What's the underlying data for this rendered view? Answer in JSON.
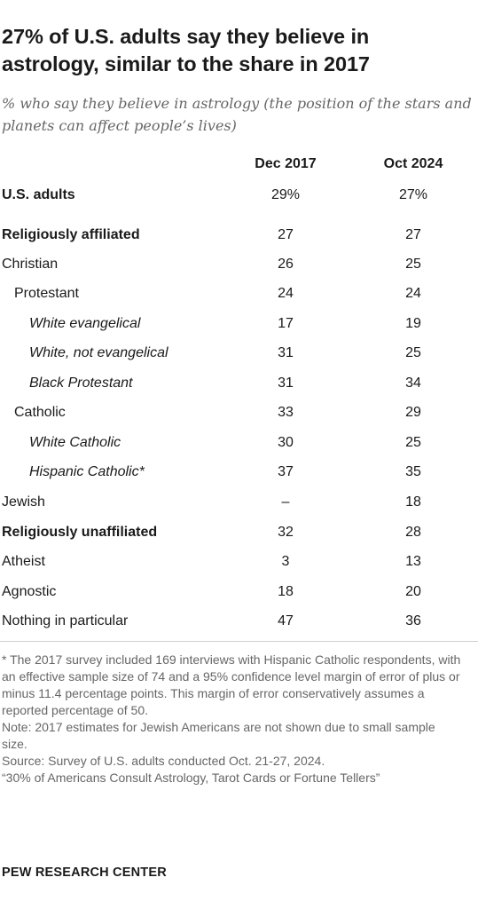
{
  "chart_data": {
    "type": "table",
    "title": "27% of U.S. adults say they believe in astrology, similar to the share in 2017",
    "subtitle": "% who say they believe in astrology (the position of the stars and planets can affect people’s lives)",
    "columns": [
      "Dec 2017",
      "Oct 2024"
    ],
    "rows": [
      {
        "label": "U.S. adults",
        "dec2017": "29%",
        "oct2024": "27%",
        "style": "bold",
        "indent": 0
      },
      {
        "label": "Religiously affiliated",
        "dec2017": "27",
        "oct2024": "27",
        "style": "bold",
        "indent": 0
      },
      {
        "label": "Christian",
        "dec2017": "26",
        "oct2024": "25",
        "style": "normal",
        "indent": 0
      },
      {
        "label": "Protestant",
        "dec2017": "24",
        "oct2024": "24",
        "style": "normal",
        "indent": 1
      },
      {
        "label": "White evangelical",
        "dec2017": "17",
        "oct2024": "19",
        "style": "italic",
        "indent": 2
      },
      {
        "label": "White, not evangelical",
        "dec2017": "31",
        "oct2024": "25",
        "style": "italic",
        "indent": 2
      },
      {
        "label": "Black Protestant",
        "dec2017": "31",
        "oct2024": "34",
        "style": "italic",
        "indent": 2
      },
      {
        "label": "Catholic",
        "dec2017": "33",
        "oct2024": "29",
        "style": "normal",
        "indent": 1
      },
      {
        "label": "White Catholic",
        "dec2017": "30",
        "oct2024": "25",
        "style": "italic",
        "indent": 2
      },
      {
        "label": "Hispanic Catholic*",
        "dec2017": "37",
        "oct2024": "35",
        "style": "italic",
        "indent": 2
      },
      {
        "label": "Jewish",
        "dec2017": "–",
        "oct2024": "18",
        "style": "normal",
        "indent": 0
      },
      {
        "label": "Religiously unaffiliated",
        "dec2017": "32",
        "oct2024": "28",
        "style": "bold",
        "indent": 0
      },
      {
        "label": "Atheist",
        "dec2017": "3",
        "oct2024": "13",
        "style": "normal",
        "indent": 0
      },
      {
        "label": "Agnostic",
        "dec2017": "18",
        "oct2024": "20",
        "style": "normal",
        "indent": 0
      },
      {
        "label": "Nothing in particular",
        "dec2017": "47",
        "oct2024": "36",
        "style": "normal",
        "indent": 0
      }
    ]
  },
  "notes": {
    "footnote": "* The 2017 survey included 169 interviews with Hispanic Catholic respondents, with an effective sample size of 74 and a 95% confidence level margin of error of plus or minus 11.4 percentage points. This margin of error conservatively assumes a reported percentage of 50.",
    "note": "Note: 2017 estimates for Jewish Americans are not shown due to small sample size.",
    "source": "Source: Survey of U.S. adults conducted Oct. 21-27, 2024.",
    "report": "“30% of Americans Consult Astrology, Tarot Cards or Fortune Tellers”"
  },
  "brand": "PEW RESEARCH CENTER",
  "colors": {
    "text": "#1a1a1a",
    "subtle": "#666666",
    "divider": "#d0d0d0"
  }
}
